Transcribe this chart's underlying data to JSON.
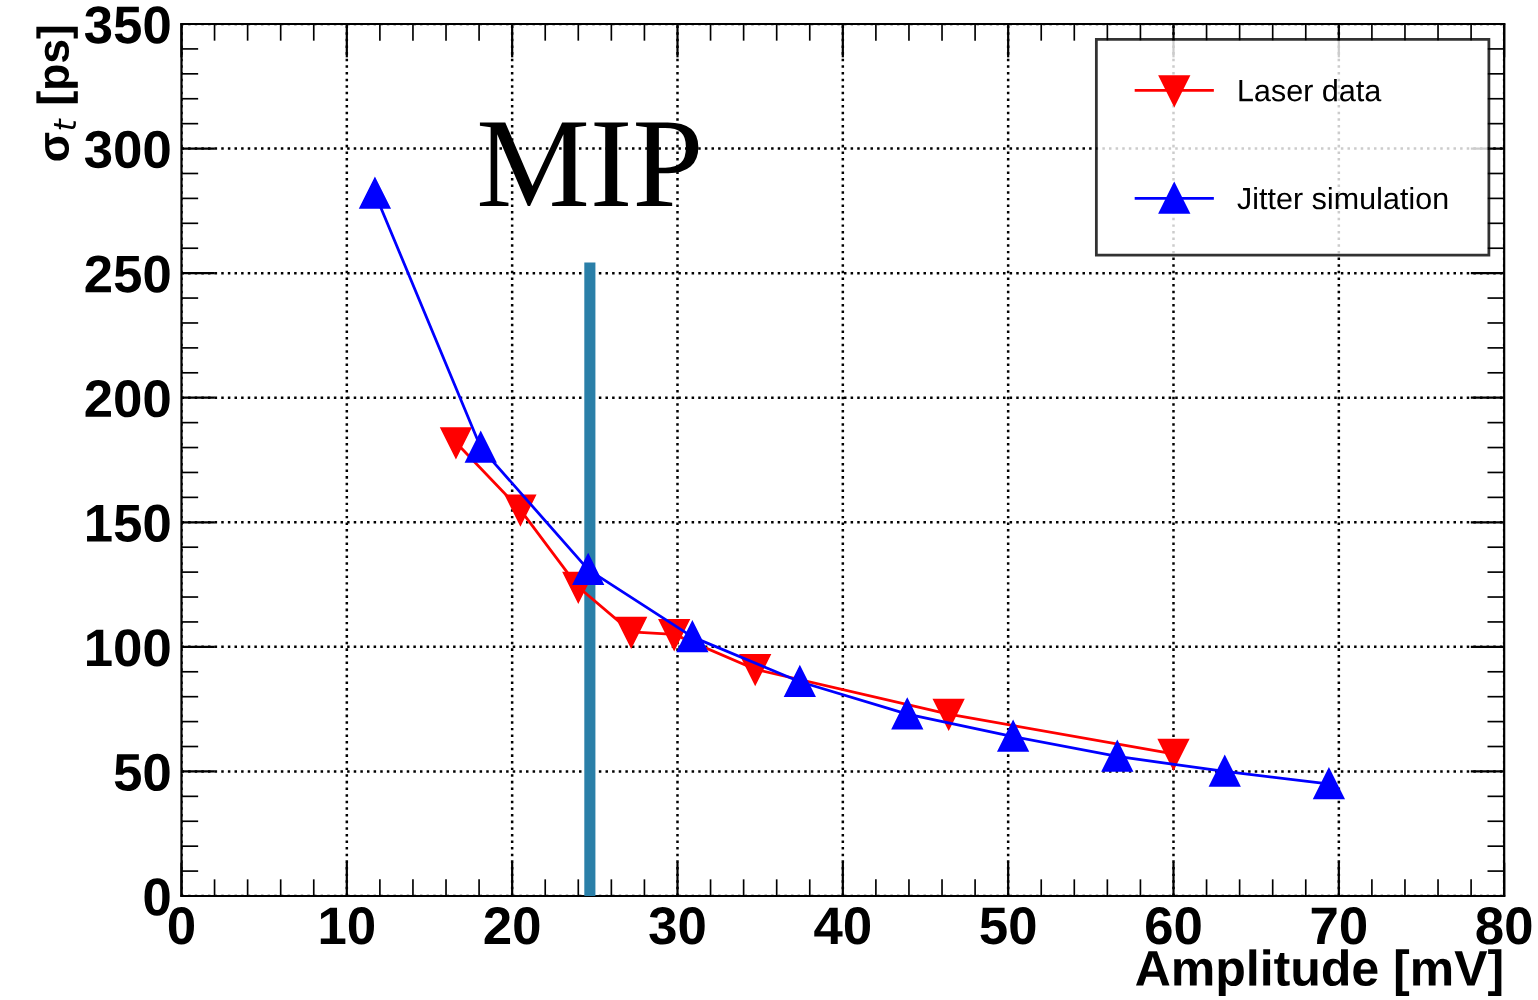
{
  "chart_data": {
    "type": "line",
    "xlabel": "Amplitude [mV]",
    "ylabel": "σ$_{t}$ [ps]",
    "xlim": [
      0,
      80
    ],
    "xticks": [
      0,
      10,
      20,
      30,
      40,
      50,
      60,
      70,
      80
    ],
    "ylim": [
      0,
      350
    ],
    "yticks": [
      0,
      50,
      100,
      150,
      200,
      250,
      300,
      350
    ],
    "grid": true,
    "legend": "top right",
    "series": [
      {
        "name": "Laser data",
        "color": "#ff0000",
        "marker": "triangle_down",
        "x": [
          16.6,
          20.5,
          24.0,
          27.2,
          29.8,
          34.7,
          46.4,
          60.0
        ],
        "values": [
          182,
          155,
          124,
          106,
          105,
          91,
          73,
          57
        ]
      },
      {
        "name": "Jitter simulation",
        "color": "#0000ff",
        "marker": "triangle",
        "x": [
          11.7,
          18.1,
          24.6,
          30.9,
          37.4,
          43.9,
          50.3,
          56.6,
          63.1,
          69.4
        ],
        "values": [
          282,
          180,
          131,
          104,
          86,
          73,
          64,
          56,
          50,
          45
        ]
      }
    ],
    "ref_lines": [
      {
        "axis": "x",
        "value": 24.7,
        "label": "MIP",
        "color": "#2a7fa8"
      }
    ]
  }
}
